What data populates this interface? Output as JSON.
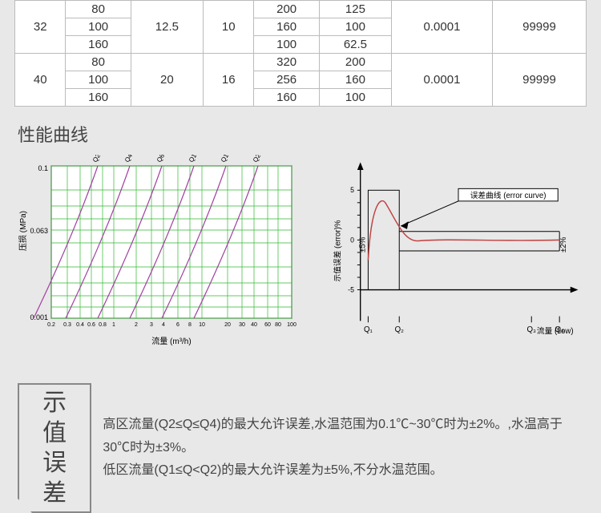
{
  "table": {
    "groups": [
      {
        "c0": "32",
        "c2": "12.5",
        "c3": "10",
        "c6": "0.0001",
        "c7": "99999",
        "rows": [
          {
            "c1": "80",
            "c4": "200",
            "c5": "125"
          },
          {
            "c1": "100",
            "c4": "160",
            "c5": "100"
          },
          {
            "c1": "160",
            "c4": "100",
            "c5": "62.5"
          }
        ]
      },
      {
        "c0": "40",
        "c2": "20",
        "c3": "16",
        "c6": "0.0001",
        "c7": "99999",
        "rows": [
          {
            "c1": "80",
            "c4": "320",
            "c5": "200"
          },
          {
            "c1": "100",
            "c4": "256",
            "c5": "160"
          },
          {
            "c1": "160",
            "c4": "160",
            "c5": "100"
          }
        ]
      }
    ]
  },
  "section": {
    "title": "性能曲线"
  },
  "chart1": {
    "type": "line-loglog",
    "xlabel": "流量 (m³/h)",
    "ylabel": "压损 (MPa)",
    "yticks": [
      "0.1",
      "0.063",
      "0.001"
    ],
    "xticks": [
      "0.2",
      "0.3",
      "0.4",
      "0.6",
      "0.8",
      "1",
      "2",
      "3",
      "4",
      "6",
      "8",
      "10",
      "20",
      "30",
      "40",
      "60",
      "80",
      "100"
    ],
    "series_labels": [
      "Q2.5",
      "Q4.0",
      "Q6.3",
      "Q10",
      "Q16",
      "Q25"
    ],
    "grid_color": "#2fb82f",
    "line_color": "#a040a0",
    "axis_color": "#000000",
    "background": "#ffffff"
  },
  "chart2": {
    "type": "line",
    "xlabel": "流量 (flow)",
    "ylabel": "示值误差 (error)%",
    "curve_label": "误差曲线 (error curve)",
    "yticks": [
      "5",
      "",
      "",
      "",
      "0",
      "",
      "",
      "",
      "-5"
    ],
    "xticks": [
      "Q₁",
      "Q₂",
      "Q₃",
      "Q₄"
    ],
    "band_labels": {
      "left": "±5%",
      "right": "±2%"
    },
    "line_color": "#c04040",
    "axis_color": "#000000",
    "grid_color": "#000000",
    "background": "#ffffff",
    "ylim": [
      -6,
      6
    ]
  },
  "footer": {
    "heading_l1": "示值",
    "heading_l2": "误差",
    "line1": "高区流量(Q2≤Q≤Q4)的最大允许误差,水温范围为0.1℃~30℃时为±2%。,水温高于30℃时为±3%。",
    "line2": "低区流量(Q1≤Q<Q2)的最大允许误差为±5%,不分水温范围。"
  }
}
